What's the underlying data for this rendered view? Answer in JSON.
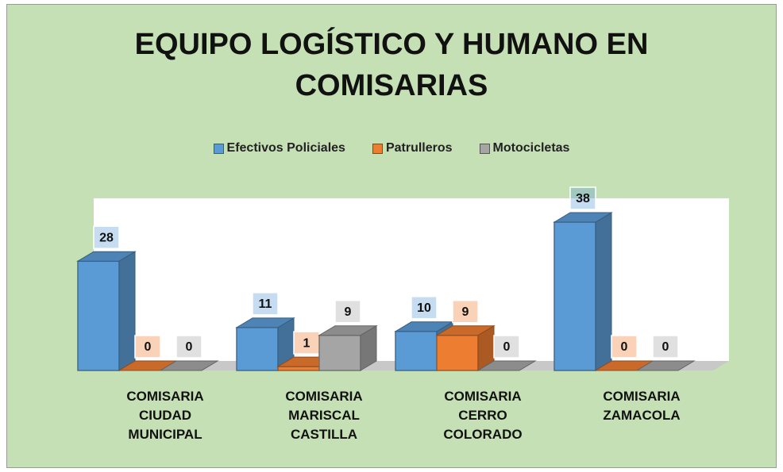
{
  "chart_data": {
    "type": "bar3d",
    "title": "EQUIPO LOGÍSTICO Y HUMANO EN COMISARIAS",
    "categories": [
      "COMISARIA CIUDAD MUNICIPAL",
      "COMISARIA MARISCAL CASTILLA",
      "COMISARIA CERRO COLORADO",
      "COMISARIA ZAMACOLA"
    ],
    "series": [
      {
        "name": "Efectivos Policiales",
        "color": "#5b9bd5",
        "values": [
          28,
          11,
          10,
          38
        ]
      },
      {
        "name": "Patrulleros",
        "color": "#ed7d31",
        "values": [
          0,
          1,
          9,
          0
        ]
      },
      {
        "name": "Motocicletas",
        "color": "#a5a5a5",
        "values": [
          0,
          9,
          0,
          0
        ]
      }
    ],
    "legend": "top"
  }
}
